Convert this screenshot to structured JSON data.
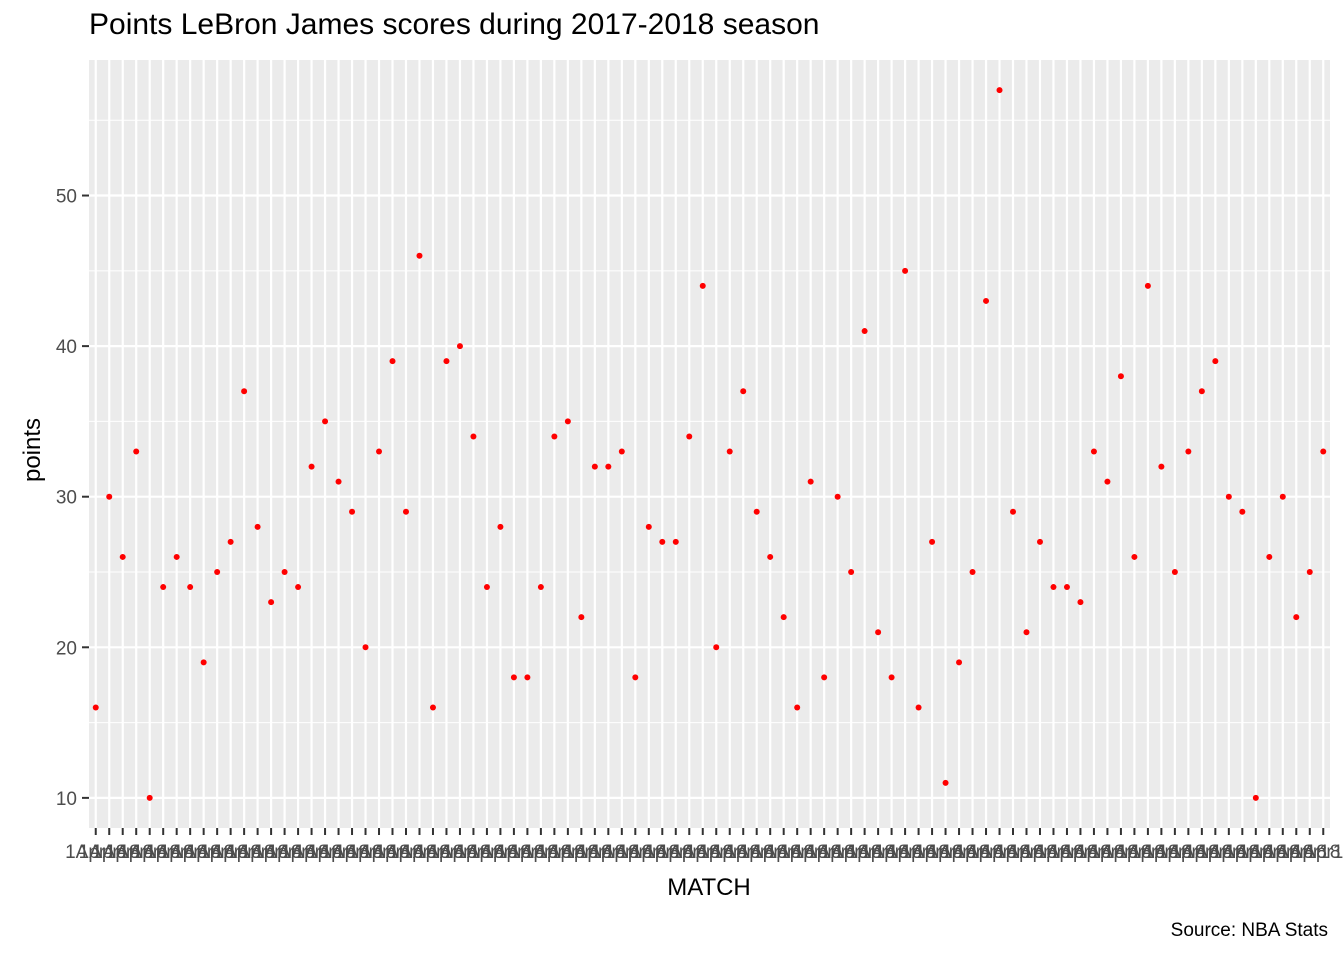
{
  "chart_data": {
    "type": "scatter",
    "title": "Points LeBron James scores during 2017-2018 season",
    "xlabel": "MATCH",
    "ylabel": "points",
    "caption": "Source: NBA Stats",
    "y_ticks": [
      10,
      20,
      30,
      40,
      50
    ],
    "ylim": [
      8,
      59
    ],
    "grid": true,
    "point_color": "#ff0000",
    "panel_color": "#ebebeb",
    "grid_color": "#ffffff",
    "tick_labels_overlapping": "1Apr18",
    "values": [
      16,
      30,
      26,
      33,
      10,
      24,
      26,
      24,
      19,
      25,
      27,
      37,
      28,
      23,
      25,
      24,
      32,
      35,
      31,
      29,
      20,
      33,
      39,
      29,
      46,
      16,
      39,
      40,
      34,
      24,
      28,
      18,
      18,
      24,
      34,
      35,
      22,
      32,
      32,
      33,
      18,
      28,
      27,
      27,
      34,
      44,
      20,
      33,
      37,
      29,
      26,
      22,
      16,
      31,
      18,
      30,
      25,
      41,
      21,
      18,
      45,
      16,
      27,
      11,
      19,
      25,
      43,
      57,
      29,
      21,
      27,
      24,
      24,
      23,
      33,
      31,
      38,
      26,
      44,
      32,
      25,
      33,
      37,
      39,
      30,
      29,
      10,
      26,
      30,
      22,
      25,
      33
    ]
  }
}
